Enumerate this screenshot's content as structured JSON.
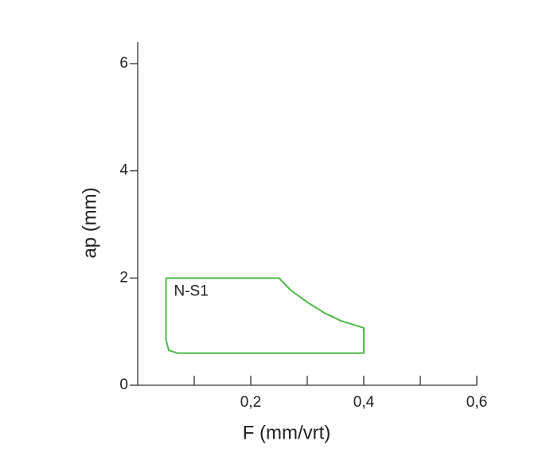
{
  "chart_data": {
    "type": "line",
    "x_label": "F (mm/vrt)",
    "y_label": "ap (mm)",
    "xlim": [
      0,
      0.6
    ],
    "ylim": [
      0,
      6.4
    ],
    "xticks": [
      {
        "value": 0.2,
        "label": "0,2"
      },
      {
        "value": 0.4,
        "label": "0,4"
      },
      {
        "value": 0.6,
        "label": "0,6"
      }
    ],
    "x_minor_ticks": [
      0.1,
      0.3,
      0.5
    ],
    "yticks": [
      0,
      2,
      4,
      6
    ],
    "series": [
      {
        "name": "N-S1",
        "color": "#4db848",
        "x": [
          0.05,
          0.25,
          0.27,
          0.3,
          0.33,
          0.36,
          0.4,
          0.4,
          0.07,
          0.055,
          0.05,
          0.05
        ],
        "values": [
          2,
          2,
          1.78,
          1.55,
          1.35,
          1.2,
          1.07,
          0.6,
          0.6,
          0.65,
          0.85,
          2
        ]
      }
    ]
  }
}
